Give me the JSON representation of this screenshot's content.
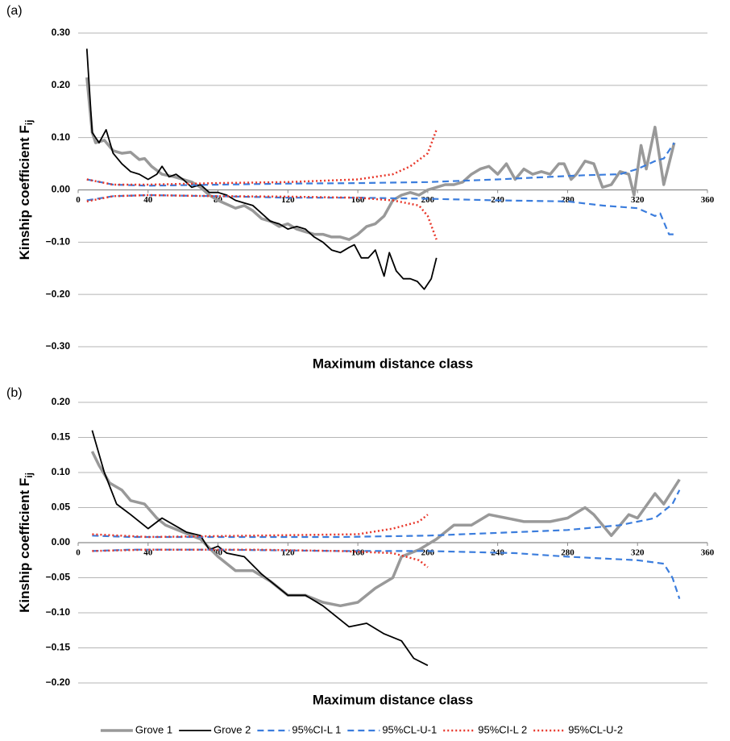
{
  "chart_data": [
    {
      "type": "line",
      "panel_label": "(a)",
      "xlabel": "Maximum distance class",
      "ylabel": "Kinship coefficient F",
      "ylabel_sub": "ij",
      "xlim": [
        0,
        360
      ],
      "xticks": [
        0,
        40,
        80,
        120,
        160,
        200,
        240,
        280,
        320,
        360
      ],
      "ylim": [
        -0.3,
        0.3
      ],
      "yticks": [
        {
          "value": -0.3,
          "label": "−0.30"
        },
        {
          "value": -0.2,
          "label": "−0.20"
        },
        {
          "value": -0.1,
          "label": "−0.10"
        },
        {
          "value": 0,
          "label": "0.00"
        },
        {
          "value": 0.1,
          "label": "0.10"
        },
        {
          "value": 0.2,
          "label": "0.20"
        },
        {
          "value": 0.3,
          "label": "0.30"
        }
      ],
      "grid": true,
      "series": [
        {
          "name": "Grove 1",
          "color": "#999999",
          "style": "solid",
          "width": 3.5,
          "x": [
            5,
            8,
            10,
            15,
            20,
            25,
            30,
            35,
            38,
            42,
            48,
            55,
            60,
            65,
            70,
            75,
            80,
            90,
            95,
            100,
            105,
            110,
            115,
            120,
            125,
            130,
            135,
            140,
            145,
            150,
            155,
            160,
            165,
            170,
            175,
            180,
            185,
            190,
            195,
            200,
            205,
            210,
            215,
            220,
            225,
            230,
            235,
            240,
            245,
            250,
            255,
            260,
            265,
            270,
            275,
            278,
            282,
            285,
            290,
            295,
            300,
            305,
            310,
            315,
            318,
            322,
            325,
            330,
            335,
            338,
            341
          ],
          "values": [
            0.215,
            0.11,
            0.09,
            0.095,
            0.075,
            0.07,
            0.072,
            0.058,
            0.06,
            0.045,
            0.03,
            0.025,
            0.02,
            0.015,
            0.005,
            -0.01,
            -0.02,
            -0.035,
            -0.03,
            -0.04,
            -0.055,
            -0.06,
            -0.07,
            -0.065,
            -0.075,
            -0.08,
            -0.085,
            -0.085,
            -0.09,
            -0.09,
            -0.095,
            -0.085,
            -0.07,
            -0.065,
            -0.05,
            -0.02,
            -0.01,
            -0.005,
            -0.01,
            0.0,
            0.005,
            0.01,
            0.01,
            0.015,
            0.03,
            0.04,
            0.045,
            0.03,
            0.05,
            0.02,
            0.04,
            0.03,
            0.035,
            0.03,
            0.05,
            0.05,
            0.02,
            0.03,
            0.055,
            0.05,
            0.005,
            0.01,
            0.035,
            0.03,
            -0.01,
            0.085,
            0.04,
            0.12,
            0.01,
            0.05,
            0.09
          ]
        },
        {
          "name": "Grove 2",
          "color": "#000000",
          "style": "solid",
          "width": 1.8,
          "x": [
            5,
            8,
            12,
            16,
            20,
            25,
            30,
            35,
            40,
            45,
            48,
            52,
            56,
            60,
            65,
            70,
            75,
            80,
            85,
            90,
            95,
            100,
            105,
            110,
            115,
            120,
            125,
            130,
            135,
            140,
            145,
            150,
            155,
            158,
            162,
            166,
            170,
            175,
            178,
            182,
            186,
            190,
            194,
            198,
            202,
            205
          ],
          "values": [
            0.27,
            0.11,
            0.09,
            0.115,
            0.07,
            0.05,
            0.035,
            0.03,
            0.02,
            0.03,
            0.045,
            0.025,
            0.03,
            0.02,
            0.005,
            0.01,
            -0.005,
            -0.005,
            -0.01,
            -0.02,
            -0.025,
            -0.03,
            -0.045,
            -0.06,
            -0.065,
            -0.075,
            -0.07,
            -0.075,
            -0.09,
            -0.1,
            -0.115,
            -0.12,
            -0.11,
            -0.105,
            -0.13,
            -0.13,
            -0.115,
            -0.165,
            -0.12,
            -0.155,
            -0.17,
            -0.17,
            -0.175,
            -0.19,
            -0.17,
            -0.13
          ]
        },
        {
          "name": "95%CI-L 1",
          "color": "#3b7ddd",
          "style": "dashed",
          "width": 2.2,
          "x": [
            5,
            20,
            40,
            80,
            120,
            160,
            200,
            240,
            280,
            300,
            320,
            330,
            333,
            338,
            341
          ],
          "values": [
            -0.02,
            -0.012,
            -0.01,
            -0.012,
            -0.015,
            -0.015,
            -0.017,
            -0.02,
            -0.022,
            -0.03,
            -0.035,
            -0.05,
            -0.045,
            -0.085,
            -0.085
          ]
        },
        {
          "name": "95%CL-U-1",
          "color": "#3b7ddd",
          "style": "dashed",
          "width": 2.2,
          "x": [
            5,
            20,
            40,
            80,
            120,
            160,
            200,
            240,
            270,
            290,
            310,
            320,
            330,
            335,
            341
          ],
          "values": [
            0.02,
            0.01,
            0.008,
            0.01,
            0.012,
            0.013,
            0.015,
            0.02,
            0.025,
            0.028,
            0.03,
            0.04,
            0.055,
            0.06,
            0.09
          ]
        },
        {
          "name": "95%CI-L 2",
          "color": "#e8372a",
          "style": "dotted",
          "width": 2.5,
          "x": [
            5,
            20,
            40,
            80,
            120,
            160,
            180,
            195,
            200,
            205
          ],
          "values": [
            -0.022,
            -0.012,
            -0.01,
            -0.012,
            -0.013,
            -0.015,
            -0.02,
            -0.03,
            -0.05,
            -0.095
          ]
        },
        {
          "name": "95%CL-U-2",
          "color": "#e8372a",
          "style": "dotted",
          "width": 2.5,
          "x": [
            5,
            20,
            40,
            80,
            120,
            160,
            180,
            190,
            200,
            205
          ],
          "values": [
            0.02,
            0.01,
            0.01,
            0.013,
            0.015,
            0.02,
            0.03,
            0.045,
            0.07,
            0.115
          ]
        }
      ]
    },
    {
      "type": "line",
      "panel_label": "(b)",
      "xlabel": "Maximum distance class",
      "ylabel": "Kinship coefficient F",
      "ylabel_sub": "ij",
      "xlim": [
        0,
        360
      ],
      "xticks": [
        0,
        40,
        80,
        120,
        160,
        200,
        240,
        280,
        320,
        360
      ],
      "ylim": [
        -0.2,
        0.2
      ],
      "yticks": [
        {
          "value": -0.2,
          "label": "−0.20"
        },
        {
          "value": -0.15,
          "label": "−0.15"
        },
        {
          "value": -0.1,
          "label": "−0.10"
        },
        {
          "value": -0.05,
          "label": "−0.05"
        },
        {
          "value": 0,
          "label": "0.00"
        },
        {
          "value": 0.05,
          "label": "0.05"
        },
        {
          "value": 0.1,
          "label": "0.10"
        },
        {
          "value": 0.15,
          "label": "0.15"
        },
        {
          "value": 0.2,
          "label": "0.20"
        }
      ],
      "grid": true,
      "series": [
        {
          "name": "Grove 1",
          "color": "#999999",
          "style": "solid",
          "width": 3.5,
          "x": [
            8,
            12,
            18,
            25,
            30,
            38,
            45,
            50,
            60,
            70,
            80,
            90,
            100,
            110,
            120,
            130,
            140,
            150,
            160,
            170,
            180,
            185,
            195,
            205,
            215,
            225,
            235,
            245,
            255,
            270,
            280,
            290,
            295,
            305,
            315,
            320,
            330,
            335,
            344
          ],
          "values": [
            0.13,
            0.11,
            0.085,
            0.075,
            0.06,
            0.055,
            0.035,
            0.025,
            0.015,
            0.005,
            -0.02,
            -0.04,
            -0.04,
            -0.055,
            -0.075,
            -0.075,
            -0.085,
            -0.09,
            -0.085,
            -0.065,
            -0.05,
            -0.02,
            -0.01,
            0.005,
            0.025,
            0.025,
            0.04,
            0.035,
            0.03,
            0.03,
            0.035,
            0.05,
            0.04,
            0.01,
            0.04,
            0.035,
            0.07,
            0.055,
            0.09
          ]
        },
        {
          "name": "Grove 2",
          "color": "#000000",
          "style": "solid",
          "width": 1.8,
          "x": [
            8,
            15,
            22,
            30,
            40,
            48,
            55,
            62,
            70,
            75,
            80,
            85,
            95,
            105,
            120,
            130,
            140,
            150,
            155,
            165,
            175,
            185,
            192,
            200
          ],
          "values": [
            0.16,
            0.1,
            0.055,
            0.04,
            0.02,
            0.035,
            0.025,
            0.015,
            0.01,
            -0.01,
            -0.005,
            -0.015,
            -0.02,
            -0.045,
            -0.075,
            -0.075,
            -0.09,
            -0.11,
            -0.12,
            -0.115,
            -0.13,
            -0.14,
            -0.165,
            -0.175
          ]
        },
        {
          "name": "95%CI-L 1",
          "color": "#3b7ddd",
          "style": "dashed",
          "width": 2.2,
          "x": [
            8,
            30,
            80,
            150,
            200,
            250,
            280,
            320,
            335,
            340,
            344
          ],
          "values": [
            -0.012,
            -0.01,
            -0.01,
            -0.012,
            -0.012,
            -0.015,
            -0.02,
            -0.025,
            -0.03,
            -0.05,
            -0.08
          ]
        },
        {
          "name": "95%CL-U-1",
          "color": "#3b7ddd",
          "style": "dashed",
          "width": 2.2,
          "x": [
            8,
            30,
            80,
            150,
            200,
            250,
            280,
            310,
            330,
            340,
            344
          ],
          "values": [
            0.01,
            0.008,
            0.008,
            0.008,
            0.01,
            0.015,
            0.018,
            0.025,
            0.035,
            0.055,
            0.075
          ]
        },
        {
          "name": "95%CI-L 2",
          "color": "#e8372a",
          "style": "dotted",
          "width": 2.5,
          "x": [
            8,
            40,
            100,
            150,
            180,
            195,
            200
          ],
          "values": [
            -0.012,
            -0.01,
            -0.01,
            -0.012,
            -0.015,
            -0.025,
            -0.035
          ]
        },
        {
          "name": "95%CL-U-2",
          "color": "#e8372a",
          "style": "dotted",
          "width": 2.5,
          "x": [
            8,
            40,
            100,
            160,
            180,
            195,
            200
          ],
          "values": [
            0.012,
            0.008,
            0.01,
            0.012,
            0.02,
            0.03,
            0.04
          ]
        }
      ]
    }
  ]
}
